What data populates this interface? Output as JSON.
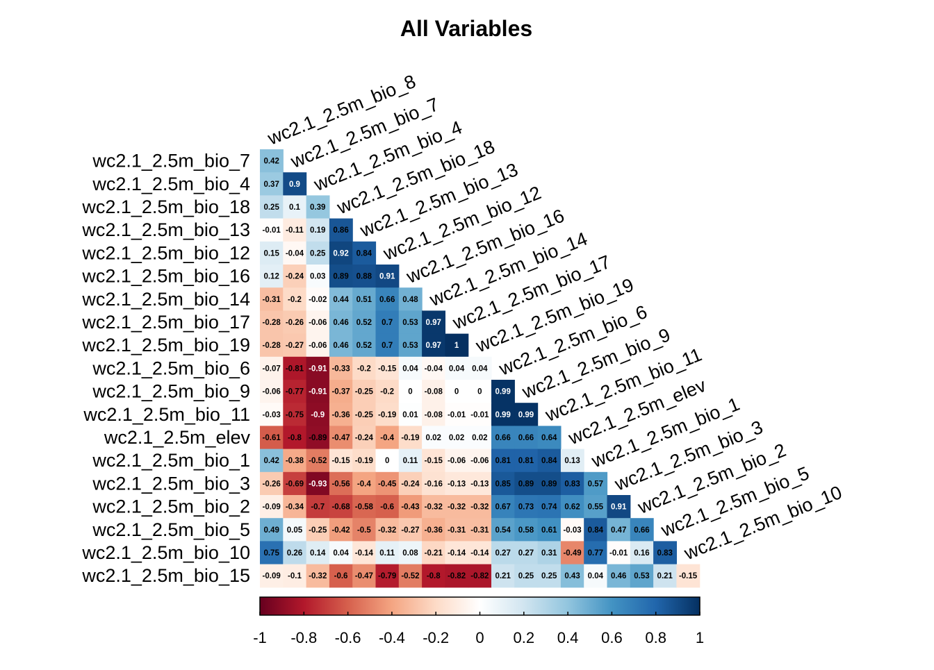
{
  "chart_data": {
    "type": "heatmap",
    "title": "All Variables",
    "variables": [
      "wc2.1_2.5m_bio_8",
      "wc2.1_2.5m_bio_7",
      "wc2.1_2.5m_bio_4",
      "wc2.1_2.5m_bio_18",
      "wc2.1_2.5m_bio_13",
      "wc2.1_2.5m_bio_12",
      "wc2.1_2.5m_bio_16",
      "wc2.1_2.5m_bio_14",
      "wc2.1_2.5m_bio_17",
      "wc2.1_2.5m_bio_19",
      "wc2.1_2.5m_bio_6",
      "wc2.1_2.5m_bio_9",
      "wc2.1_2.5m_bio_11",
      "wc2.1_2.5m_elev",
      "wc2.1_2.5m_bio_1",
      "wc2.1_2.5m_bio_3",
      "wc2.1_2.5m_bio_2",
      "wc2.1_2.5m_bio_5",
      "wc2.1_2.5m_bio_10",
      "wc2.1_2.5m_bio_15"
    ],
    "row_labels": [
      "wc2.1_2.5m_bio_7",
      "wc2.1_2.5m_bio_4",
      "wc2.1_2.5m_bio_18",
      "wc2.1_2.5m_bio_13",
      "wc2.1_2.5m_bio_12",
      "wc2.1_2.5m_bio_16",
      "wc2.1_2.5m_bio_14",
      "wc2.1_2.5m_bio_17",
      "wc2.1_2.5m_bio_19",
      "wc2.1_2.5m_bio_6",
      "wc2.1_2.5m_bio_9",
      "wc2.1_2.5m_bio_11",
      "wc2.1_2.5m_elev",
      "wc2.1_2.5m_bio_1",
      "wc2.1_2.5m_bio_3",
      "wc2.1_2.5m_bio_2",
      "wc2.1_2.5m_bio_5",
      "wc2.1_2.5m_bio_10",
      "wc2.1_2.5m_bio_15"
    ],
    "column_labels": [
      "wc2.1_2.5m_bio_8",
      "wc2.1_2.5m_bio_7",
      "wc2.1_2.5m_bio_4",
      "wc2.1_2.5m_bio_18",
      "wc2.1_2.5m_bio_13",
      "wc2.1_2.5m_bio_12",
      "wc2.1_2.5m_bio_16",
      "wc2.1_2.5m_bio_14",
      "wc2.1_2.5m_bio_17",
      "wc2.1_2.5m_bio_19",
      "wc2.1_2.5m_bio_6",
      "wc2.1_2.5m_bio_9",
      "wc2.1_2.5m_bio_11",
      "wc2.1_2.5m_elev",
      "wc2.1_2.5m_bio_1",
      "wc2.1_2.5m_bio_3",
      "wc2.1_2.5m_bio_2",
      "wc2.1_2.5m_bio_5",
      "wc2.1_2.5m_bio_10"
    ],
    "values": [
      [
        0.42
      ],
      [
        0.37,
        0.9
      ],
      [
        0.25,
        0.1,
        0.39
      ],
      [
        -0.01,
        -0.11,
        0.19,
        0.86
      ],
      [
        0.15,
        -0.04,
        0.25,
        0.92,
        0.84
      ],
      [
        0.12,
        -0.24,
        0.03,
        0.89,
        0.88,
        0.91
      ],
      [
        -0.31,
        -0.2,
        -0.02,
        0.44,
        0.51,
        0.66,
        0.48
      ],
      [
        -0.28,
        -0.26,
        -0.06,
        0.46,
        0.52,
        0.7,
        0.53,
        0.97
      ],
      [
        -0.28,
        -0.27,
        -0.06,
        0.46,
        0.52,
        0.7,
        0.53,
        0.97,
        1
      ],
      [
        -0.07,
        -0.81,
        -0.91,
        -0.33,
        -0.2,
        -0.15,
        0.04,
        -0.04,
        0.04,
        0.04
      ],
      [
        -0.06,
        -0.77,
        -0.91,
        -0.37,
        -0.25,
        -0.2,
        0,
        -0.08,
        0,
        0,
        0.99
      ],
      [
        -0.03,
        -0.75,
        -0.9,
        -0.36,
        -0.25,
        -0.19,
        0.01,
        -0.08,
        -0.01,
        -0.01,
        0.99,
        0.99
      ],
      [
        -0.61,
        -0.8,
        -0.89,
        -0.47,
        -0.24,
        -0.4,
        -0.19,
        0.02,
        0.02,
        0.02,
        0.66,
        0.66,
        0.64
      ],
      [
        0.42,
        -0.38,
        -0.52,
        -0.15,
        -0.19,
        0,
        0.11,
        -0.15,
        -0.06,
        -0.06,
        0.81,
        0.81,
        0.84,
        0.13
      ],
      [
        -0.26,
        -0.69,
        -0.93,
        -0.56,
        -0.4,
        -0.45,
        -0.24,
        -0.16,
        -0.13,
        -0.13,
        0.85,
        0.89,
        0.89,
        0.83,
        0.57
      ],
      [
        -0.09,
        -0.34,
        -0.7,
        -0.68,
        -0.58,
        -0.6,
        -0.43,
        -0.32,
        -0.32,
        -0.32,
        0.67,
        0.73,
        0.74,
        0.62,
        0.55,
        0.91
      ],
      [
        0.49,
        0.05,
        -0.25,
        -0.42,
        -0.5,
        -0.32,
        -0.27,
        -0.36,
        -0.31,
        -0.31,
        0.54,
        0.58,
        0.61,
        -0.03,
        0.84,
        0.47,
        0.66
      ],
      [
        0.75,
        0.26,
        0.14,
        0.04,
        -0.14,
        0.11,
        0.08,
        -0.21,
        -0.14,
        -0.14,
        0.27,
        0.27,
        0.31,
        -0.49,
        0.77,
        -0.01,
        0.16,
        0.83
      ],
      [
        -0.09,
        -0.1,
        -0.32,
        -0.6,
        -0.47,
        -0.79,
        -0.52,
        -0.8,
        -0.82,
        -0.82,
        0.21,
        0.25,
        0.25,
        0.43,
        0.04,
        0.46,
        0.53,
        0.21,
        -0.15
      ]
    ],
    "color_scale": {
      "range": [
        -1,
        1
      ],
      "ticks": [
        "-1",
        "-0.8",
        "-0.6",
        "-0.4",
        "-0.2",
        "0",
        "0.2",
        "0.4",
        "0.6",
        "0.8",
        "1"
      ],
      "colors": [
        "#67001f",
        "#b2182b",
        "#d6604d",
        "#f4a582",
        "#fddbc7",
        "#ffffff",
        "#d1e5f0",
        "#92c5de",
        "#4393c3",
        "#2166ac",
        "#053061"
      ]
    },
    "legend_position": "bottom",
    "grid": false
  }
}
